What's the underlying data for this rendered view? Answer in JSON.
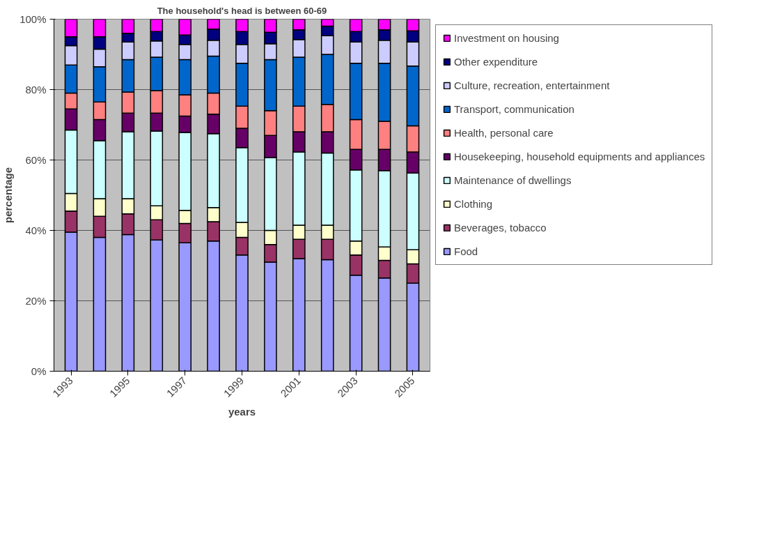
{
  "chart_data": {
    "type": "bar",
    "stacked": true,
    "title": "The household's head is between 60-69",
    "xlabel": "years",
    "ylabel": "percentage",
    "categories": [
      "1993",
      null,
      "1995",
      null,
      "1997",
      null,
      "1999",
      null,
      "2001",
      null,
      "2003",
      null,
      "2005"
    ],
    "ylim": [
      0,
      100
    ],
    "yticks": [
      {
        "value": 0,
        "label": "0%"
      },
      {
        "value": 20,
        "label": "20%"
      },
      {
        "value": 40,
        "label": "40%"
      },
      {
        "value": 60,
        "label": "60%"
      },
      {
        "value": 80,
        "label": "80%"
      },
      {
        "value": 100,
        "label": "100%"
      }
    ],
    "grid": "y",
    "legend": "right",
    "series": [
      {
        "name": "Food",
        "color": "#9999ff",
        "values": [
          39.5,
          38,
          38.8,
          37.3,
          36.5,
          37,
          33,
          31,
          32,
          31.7,
          27.3,
          26.5,
          25
        ]
      },
      {
        "name": "Beverages, tobacco",
        "color": "#993366",
        "values": [
          6,
          6,
          5.9,
          5.7,
          5.5,
          5.5,
          5,
          5,
          5.5,
          5.8,
          5.7,
          5,
          5.5
        ]
      },
      {
        "name": "Clothing",
        "color": "#ffffcc",
        "values": [
          5,
          5,
          4.3,
          4,
          3.7,
          4,
          4.3,
          4,
          4,
          4,
          4,
          3.8,
          4
        ]
      },
      {
        "name": "Maintenance of dwellings",
        "color": "#ccffff",
        "values": [
          18,
          16.5,
          19,
          21.2,
          22.1,
          21,
          21.2,
          20.7,
          20.8,
          20.5,
          20.2,
          21.7,
          21.8
        ]
      },
      {
        "name": "Housekeeping, household equipments and appliances",
        "color": "#660066",
        "values": [
          6,
          6,
          5.3,
          5.1,
          4.7,
          5.5,
          5.5,
          6.3,
          5.7,
          6,
          5.8,
          6,
          6
        ]
      },
      {
        "name": "Health, personal care",
        "color": "#ff8080",
        "values": [
          4.5,
          5,
          6,
          6.4,
          6,
          6,
          6.3,
          7,
          7.3,
          7.8,
          8.5,
          8,
          7.4
        ]
      },
      {
        "name": "Transport, communication",
        "color": "#0066cc",
        "values": [
          8,
          10,
          9.2,
          9.5,
          10,
          10.5,
          12.2,
          14.5,
          13.9,
          14.2,
          16,
          16.5,
          17
        ]
      },
      {
        "name": "Culture, recreation, entertainment",
        "color": "#ccccff",
        "values": [
          5.5,
          5,
          5,
          4.6,
          4.3,
          4.5,
          5.3,
          4.5,
          5,
          5.3,
          6,
          6.5,
          6.8
        ]
      },
      {
        "name": "Other expenditure",
        "color": "#000080",
        "values": [
          2.5,
          3.5,
          2.5,
          2.7,
          2.7,
          3.2,
          3.7,
          3.3,
          2.8,
          2.7,
          3,
          3,
          3.2
        ]
      },
      {
        "name": "Investment on housing",
        "color": "#ff00ff",
        "values": [
          5,
          5,
          4,
          3.5,
          4.5,
          2.8,
          3.5,
          3.7,
          3,
          2,
          3.5,
          3,
          3.3
        ]
      }
    ]
  }
}
